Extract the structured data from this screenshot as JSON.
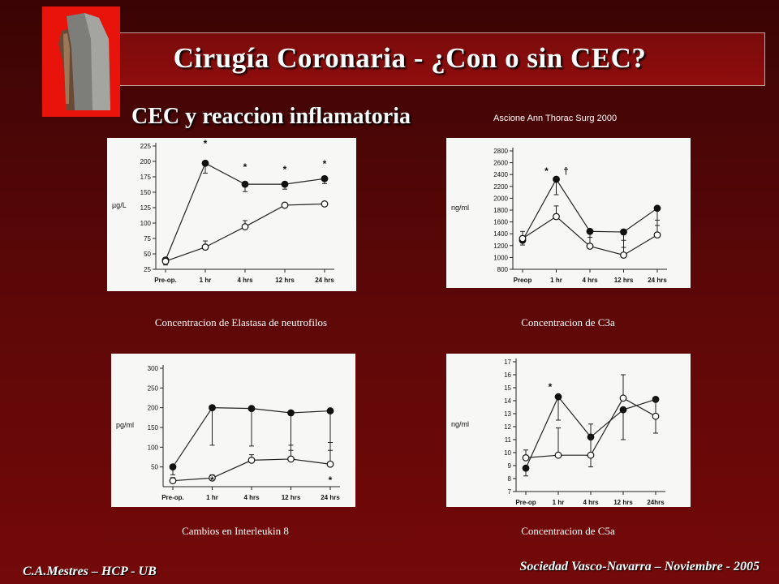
{
  "header": {
    "title": "Cirugía Coronaria - ¿Con o sin CEC?",
    "subtitle": "CEC y reaccion inflamatoria",
    "citation": "Ascione  Ann Thorac Surg   2000"
  },
  "footer": {
    "left": "C.A.Mestres – HCP - UB",
    "right": "Sociedad Vasco-Navarra – Noviembre - 2005"
  },
  "colors": {
    "background": "#5a0707",
    "logo": "#e8140c",
    "panel": "#f7f7f5"
  },
  "chart_data": [
    {
      "id": "elastasa",
      "type": "line",
      "caption": "Concentracion de Elastasa de neutrofilos",
      "ylabel": "µg/L",
      "ylim": [
        25,
        225
      ],
      "yticks": [
        "25",
        "50",
        "75",
        "100",
        "125",
        "150",
        "175",
        "200",
        "225"
      ],
      "categories": [
        "Pre-op.",
        "1 hr",
        "4 hrs",
        "12 hrs",
        "24 hrs"
      ],
      "annotations": [
        "*",
        "*",
        "*",
        "*"
      ],
      "series": [
        {
          "style": "filled",
          "values": [
            40,
            197,
            163,
            163,
            172
          ],
          "errors": [
            8,
            16,
            12,
            8,
            8
          ]
        },
        {
          "style": "open",
          "values": [
            38,
            61,
            94,
            129,
            131
          ],
          "errors": [
            6,
            10,
            10,
            4,
            3
          ]
        }
      ]
    },
    {
      "id": "c3a",
      "type": "line",
      "caption": "Concentracion de C3a",
      "ylabel": "ng/ml",
      "ylim": [
        800,
        2800
      ],
      "yticks": [
        "800",
        "1000",
        "1200",
        "1400",
        "1600",
        "1800",
        "2000",
        "2200",
        "2400",
        "2600",
        "2800"
      ],
      "categories": [
        "Preop",
        "1 hr",
        "4 hrs",
        "12 hrs",
        "24 hrs"
      ],
      "annotations": [
        "*",
        "†"
      ],
      "series": [
        {
          "style": "filled",
          "values": [
            1290,
            2320,
            1440,
            1430,
            1830
          ],
          "errors": [
            80,
            260,
            270,
            260,
            290
          ]
        },
        {
          "style": "open",
          "values": [
            1320,
            1690,
            1190,
            1040,
            1380
          ],
          "errors": [
            120,
            180,
            150,
            250,
            250
          ]
        }
      ]
    },
    {
      "id": "il8",
      "type": "line",
      "caption": "Cambios en Interleukin 8",
      "ylabel": "pg/ml",
      "ylim": [
        0,
        300
      ],
      "yticks": [
        "50",
        "100",
        "150",
        "200",
        "250",
        "300"
      ],
      "categories": [
        "Pre-op.",
        "1 hr",
        "4 hrs",
        "12 hrs",
        "24 hrs"
      ],
      "annotations": [
        "*",
        "*"
      ],
      "series": [
        {
          "style": "filled",
          "values": [
            50,
            200,
            198,
            187,
            192
          ],
          "errors": [
            20,
            95,
            95,
            95,
            100
          ]
        },
        {
          "style": "open",
          "values": [
            15,
            22,
            67,
            70,
            57
          ],
          "errors": [
            8,
            8,
            14,
            35,
            55
          ]
        }
      ]
    },
    {
      "id": "c5a",
      "type": "line",
      "caption": "Concentracion de C5a",
      "ylabel": "ng/ml",
      "ylim": [
        7,
        17
      ],
      "yticks": [
        "7",
        "8",
        "9",
        "10",
        "11",
        "12",
        "13",
        "14",
        "15",
        "16",
        "17"
      ],
      "categories": [
        "Pre-op",
        "1 hr",
        "4 hrs",
        "12 hrs",
        "24hrs"
      ],
      "annotations": [
        "*"
      ],
      "series": [
        {
          "style": "filled",
          "values": [
            8.8,
            14.3,
            11.2,
            13.3,
            14.1
          ],
          "errors": [
            0.6,
            1.8,
            2.3,
            2.3,
            2.6
          ]
        },
        {
          "style": "open",
          "values": [
            9.6,
            9.8,
            9.8,
            14.2,
            12.8
          ],
          "errors": [
            0.6,
            2.1,
            2.4,
            1.8,
            1.3
          ]
        }
      ]
    }
  ]
}
